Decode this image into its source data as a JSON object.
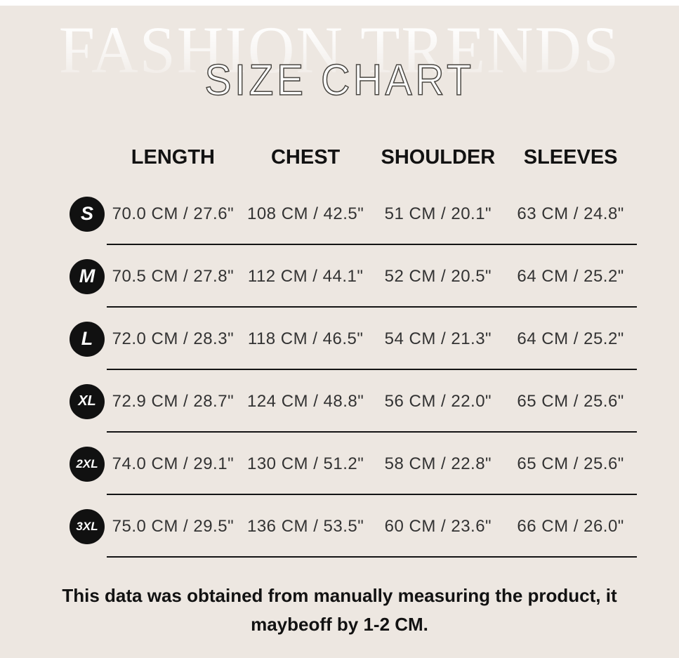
{
  "header": {
    "watermark": "FASHION TRENDS",
    "title": "SIZE CHART"
  },
  "chart_data": {
    "type": "table",
    "title": "SIZE CHART",
    "columns": [
      "LENGTH",
      "CHEST",
      "SHOULDER",
      "SLEEVES"
    ],
    "rows": [
      {
        "size": "S",
        "length": "70.0 CM / 27.6\"",
        "chest": "108 CM / 42.5\"",
        "shoulder": "51 CM / 20.1\"",
        "sleeves": "63 CM / 24.8\""
      },
      {
        "size": "M",
        "length": "70.5 CM / 27.8\"",
        "chest": "112 CM / 44.1\"",
        "shoulder": "52 CM / 20.5\"",
        "sleeves": "64 CM / 25.2\""
      },
      {
        "size": "L",
        "length": "72.0 CM / 28.3\"",
        "chest": "118 CM / 46.5\"",
        "shoulder": "54 CM / 21.3\"",
        "sleeves": "64 CM / 25.2\""
      },
      {
        "size": "XL",
        "length": "72.9 CM / 28.7\"",
        "chest": "124 CM / 48.8\"",
        "shoulder": "56 CM / 22.0\"",
        "sleeves": "65 CM / 25.6\""
      },
      {
        "size": "2XL",
        "length": "74.0 CM / 29.1\"",
        "chest": "130 CM / 51.2\"",
        "shoulder": "58 CM / 22.8\"",
        "sleeves": "65 CM / 25.6\""
      },
      {
        "size": "3XL",
        "length": "75.0 CM / 29.5\"",
        "chest": "136 CM / 53.5\"",
        "shoulder": "60 CM / 23.6\"",
        "sleeves": "66 CM / 26.0\""
      }
    ]
  },
  "footer": {
    "note": "This data was obtained from manually measuring the product, it maybeoff by 1-2 CM."
  },
  "colors": {
    "background": "#EDE7E1",
    "text": "#1C1C1C",
    "badge_background": "#111111",
    "badge_text": "#FFFFFF",
    "divider": "#141414"
  }
}
